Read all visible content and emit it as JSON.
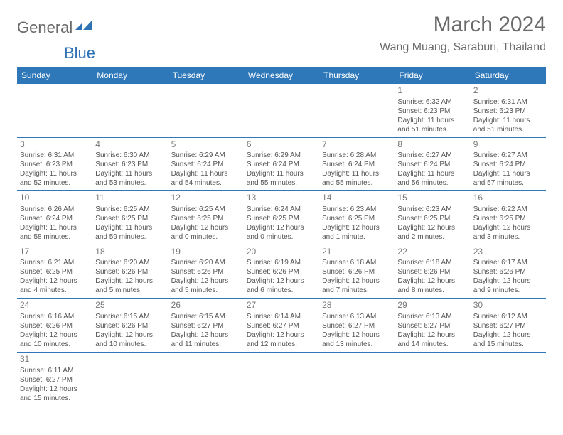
{
  "logo": {
    "part1": "General",
    "part2": "Blue"
  },
  "title": "March 2024",
  "location": "Wang Muang, Saraburi, Thailand",
  "colors": {
    "header_bg": "#2e78ba",
    "header_fg": "#ffffff",
    "text": "#555555",
    "logo_gray": "#6a6a6a",
    "logo_blue": "#2e72b5",
    "divider": "#2e78ba"
  },
  "day_headers": [
    "Sunday",
    "Monday",
    "Tuesday",
    "Wednesday",
    "Thursday",
    "Friday",
    "Saturday"
  ],
  "weeks": [
    [
      null,
      null,
      null,
      null,
      null,
      {
        "n": "1",
        "sunrise": "6:32 AM",
        "sunset": "6:23 PM",
        "daylight": "11 hours and 51 minutes."
      },
      {
        "n": "2",
        "sunrise": "6:31 AM",
        "sunset": "6:23 PM",
        "daylight": "11 hours and 51 minutes."
      }
    ],
    [
      {
        "n": "3",
        "sunrise": "6:31 AM",
        "sunset": "6:23 PM",
        "daylight": "11 hours and 52 minutes."
      },
      {
        "n": "4",
        "sunrise": "6:30 AM",
        "sunset": "6:23 PM",
        "daylight": "11 hours and 53 minutes."
      },
      {
        "n": "5",
        "sunrise": "6:29 AM",
        "sunset": "6:24 PM",
        "daylight": "11 hours and 54 minutes."
      },
      {
        "n": "6",
        "sunrise": "6:29 AM",
        "sunset": "6:24 PM",
        "daylight": "11 hours and 55 minutes."
      },
      {
        "n": "7",
        "sunrise": "6:28 AM",
        "sunset": "6:24 PM",
        "daylight": "11 hours and 55 minutes."
      },
      {
        "n": "8",
        "sunrise": "6:27 AM",
        "sunset": "6:24 PM",
        "daylight": "11 hours and 56 minutes."
      },
      {
        "n": "9",
        "sunrise": "6:27 AM",
        "sunset": "6:24 PM",
        "daylight": "11 hours and 57 minutes."
      }
    ],
    [
      {
        "n": "10",
        "sunrise": "6:26 AM",
        "sunset": "6:24 PM",
        "daylight": "11 hours and 58 minutes."
      },
      {
        "n": "11",
        "sunrise": "6:25 AM",
        "sunset": "6:25 PM",
        "daylight": "11 hours and 59 minutes."
      },
      {
        "n": "12",
        "sunrise": "6:25 AM",
        "sunset": "6:25 PM",
        "daylight": "12 hours and 0 minutes."
      },
      {
        "n": "13",
        "sunrise": "6:24 AM",
        "sunset": "6:25 PM",
        "daylight": "12 hours and 0 minutes."
      },
      {
        "n": "14",
        "sunrise": "6:23 AM",
        "sunset": "6:25 PM",
        "daylight": "12 hours and 1 minute."
      },
      {
        "n": "15",
        "sunrise": "6:23 AM",
        "sunset": "6:25 PM",
        "daylight": "12 hours and 2 minutes."
      },
      {
        "n": "16",
        "sunrise": "6:22 AM",
        "sunset": "6:25 PM",
        "daylight": "12 hours and 3 minutes."
      }
    ],
    [
      {
        "n": "17",
        "sunrise": "6:21 AM",
        "sunset": "6:25 PM",
        "daylight": "12 hours and 4 minutes."
      },
      {
        "n": "18",
        "sunrise": "6:20 AM",
        "sunset": "6:26 PM",
        "daylight": "12 hours and 5 minutes."
      },
      {
        "n": "19",
        "sunrise": "6:20 AM",
        "sunset": "6:26 PM",
        "daylight": "12 hours and 5 minutes."
      },
      {
        "n": "20",
        "sunrise": "6:19 AM",
        "sunset": "6:26 PM",
        "daylight": "12 hours and 6 minutes."
      },
      {
        "n": "21",
        "sunrise": "6:18 AM",
        "sunset": "6:26 PM",
        "daylight": "12 hours and 7 minutes."
      },
      {
        "n": "22",
        "sunrise": "6:18 AM",
        "sunset": "6:26 PM",
        "daylight": "12 hours and 8 minutes."
      },
      {
        "n": "23",
        "sunrise": "6:17 AM",
        "sunset": "6:26 PM",
        "daylight": "12 hours and 9 minutes."
      }
    ],
    [
      {
        "n": "24",
        "sunrise": "6:16 AM",
        "sunset": "6:26 PM",
        "daylight": "12 hours and 10 minutes."
      },
      {
        "n": "25",
        "sunrise": "6:15 AM",
        "sunset": "6:26 PM",
        "daylight": "12 hours and 10 minutes."
      },
      {
        "n": "26",
        "sunrise": "6:15 AM",
        "sunset": "6:27 PM",
        "daylight": "12 hours and 11 minutes."
      },
      {
        "n": "27",
        "sunrise": "6:14 AM",
        "sunset": "6:27 PM",
        "daylight": "12 hours and 12 minutes."
      },
      {
        "n": "28",
        "sunrise": "6:13 AM",
        "sunset": "6:27 PM",
        "daylight": "12 hours and 13 minutes."
      },
      {
        "n": "29",
        "sunrise": "6:13 AM",
        "sunset": "6:27 PM",
        "daylight": "12 hours and 14 minutes."
      },
      {
        "n": "30",
        "sunrise": "6:12 AM",
        "sunset": "6:27 PM",
        "daylight": "12 hours and 15 minutes."
      }
    ],
    [
      {
        "n": "31",
        "sunrise": "6:11 AM",
        "sunset": "6:27 PM",
        "daylight": "12 hours and 15 minutes."
      },
      null,
      null,
      null,
      null,
      null,
      null
    ]
  ],
  "labels": {
    "sunrise": "Sunrise:",
    "sunset": "Sunset:",
    "daylight": "Daylight:"
  }
}
